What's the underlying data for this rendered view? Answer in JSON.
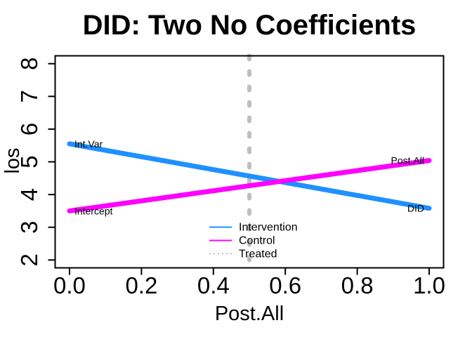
{
  "window": {
    "background": "#FFFFFF",
    "axis_color": "#000000"
  },
  "chart_data": {
    "type": "line",
    "title": "DID: Two No Coefficients",
    "xlabel": "Post.All",
    "ylabel": "los",
    "xlim": [
      0,
      1
    ],
    "ylim": [
      2,
      8
    ],
    "grid": false,
    "xticks": {
      "values": [
        0,
        0.2,
        0.4,
        0.6,
        0.8,
        1
      ],
      "labels": [
        "0.0",
        "0.2",
        "0.4",
        "0.6",
        "0.8",
        "1.0"
      ]
    },
    "yticks": {
      "values": [
        2,
        3,
        4,
        5,
        6,
        7,
        8
      ],
      "labels": [
        "2",
        "3",
        "4",
        "5",
        "6",
        "7",
        "8"
      ]
    },
    "series": [
      {
        "name": "Intervention",
        "color": "#1E90FF",
        "x": [
          0,
          1
        ],
        "y": [
          5.55,
          3.58
        ]
      },
      {
        "name": "Control",
        "color": "#FF00FF",
        "x": [
          0,
          1
        ],
        "y": [
          3.5,
          5.04
        ]
      }
    ],
    "vline": {
      "label": "Treated",
      "x": 0.5,
      "color": "#BEBEBE",
      "style": "dashed"
    },
    "annotations": [
      {
        "text": "Int.Var",
        "x": 0,
        "y": 5.55,
        "side": "right"
      },
      {
        "text": "Intercept",
        "x": 0,
        "y": 3.5,
        "side": "right"
      },
      {
        "text": "Post.All",
        "x": 1,
        "y": 5.04,
        "side": "left"
      },
      {
        "text": "DID",
        "x": 1,
        "y": 3.58,
        "side": "left"
      }
    ],
    "legend": {
      "position": "bottom-center",
      "entries": [
        {
          "label": "Intervention",
          "color": "#1E90FF",
          "line_style": "solid"
        },
        {
          "label": "Control",
          "color": "#FF00FF",
          "line_style": "solid"
        },
        {
          "label": "Treated",
          "color": "#A8A8A8",
          "line_style": "dotted"
        }
      ]
    }
  }
}
